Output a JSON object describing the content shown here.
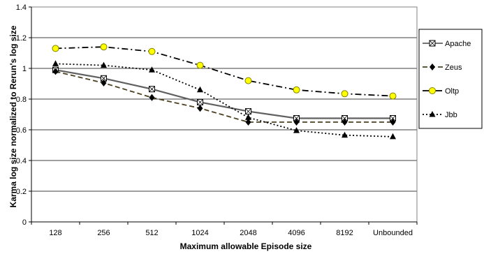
{
  "chart_data": {
    "type": "line",
    "title": "",
    "xlabel": "Maximum allowable Episode size",
    "ylabel": "Karma log size normalized to Rerun's log size",
    "categories": [
      "128",
      "256",
      "512",
      "1024",
      "2048",
      "4096",
      "8192",
      "Unbounded"
    ],
    "ylim": [
      0,
      1.4
    ],
    "yticks": [
      "0",
      "0.2",
      "0.4",
      "0.6",
      "0.8",
      "1",
      "1.2",
      "1.4"
    ],
    "grid": "horizontal",
    "legend_position": "right",
    "series": [
      {
        "name": "Apache",
        "values": [
          0.99,
          0.935,
          0.865,
          0.78,
          0.72,
          0.675,
          0.675,
          0.675
        ],
        "color": "#606060",
        "dash": "solid",
        "marker": "square"
      },
      {
        "name": "Zeus",
        "values": [
          0.98,
          0.905,
          0.81,
          0.74,
          0.65,
          0.65,
          0.65,
          0.65
        ],
        "color": "#4a4020",
        "dash": "dashed",
        "marker": "diamond"
      },
      {
        "name": "Oltp",
        "values": [
          1.13,
          1.14,
          1.11,
          1.02,
          0.92,
          0.86,
          0.835,
          0.82
        ],
        "color": "#000000",
        "dash": "dashdot",
        "marker": "circle"
      },
      {
        "name": "Jbb",
        "values": [
          1.03,
          1.02,
          0.99,
          0.86,
          0.68,
          0.595,
          0.565,
          0.555
        ],
        "color": "#000000",
        "dash": "dotted",
        "marker": "triangle"
      }
    ]
  }
}
